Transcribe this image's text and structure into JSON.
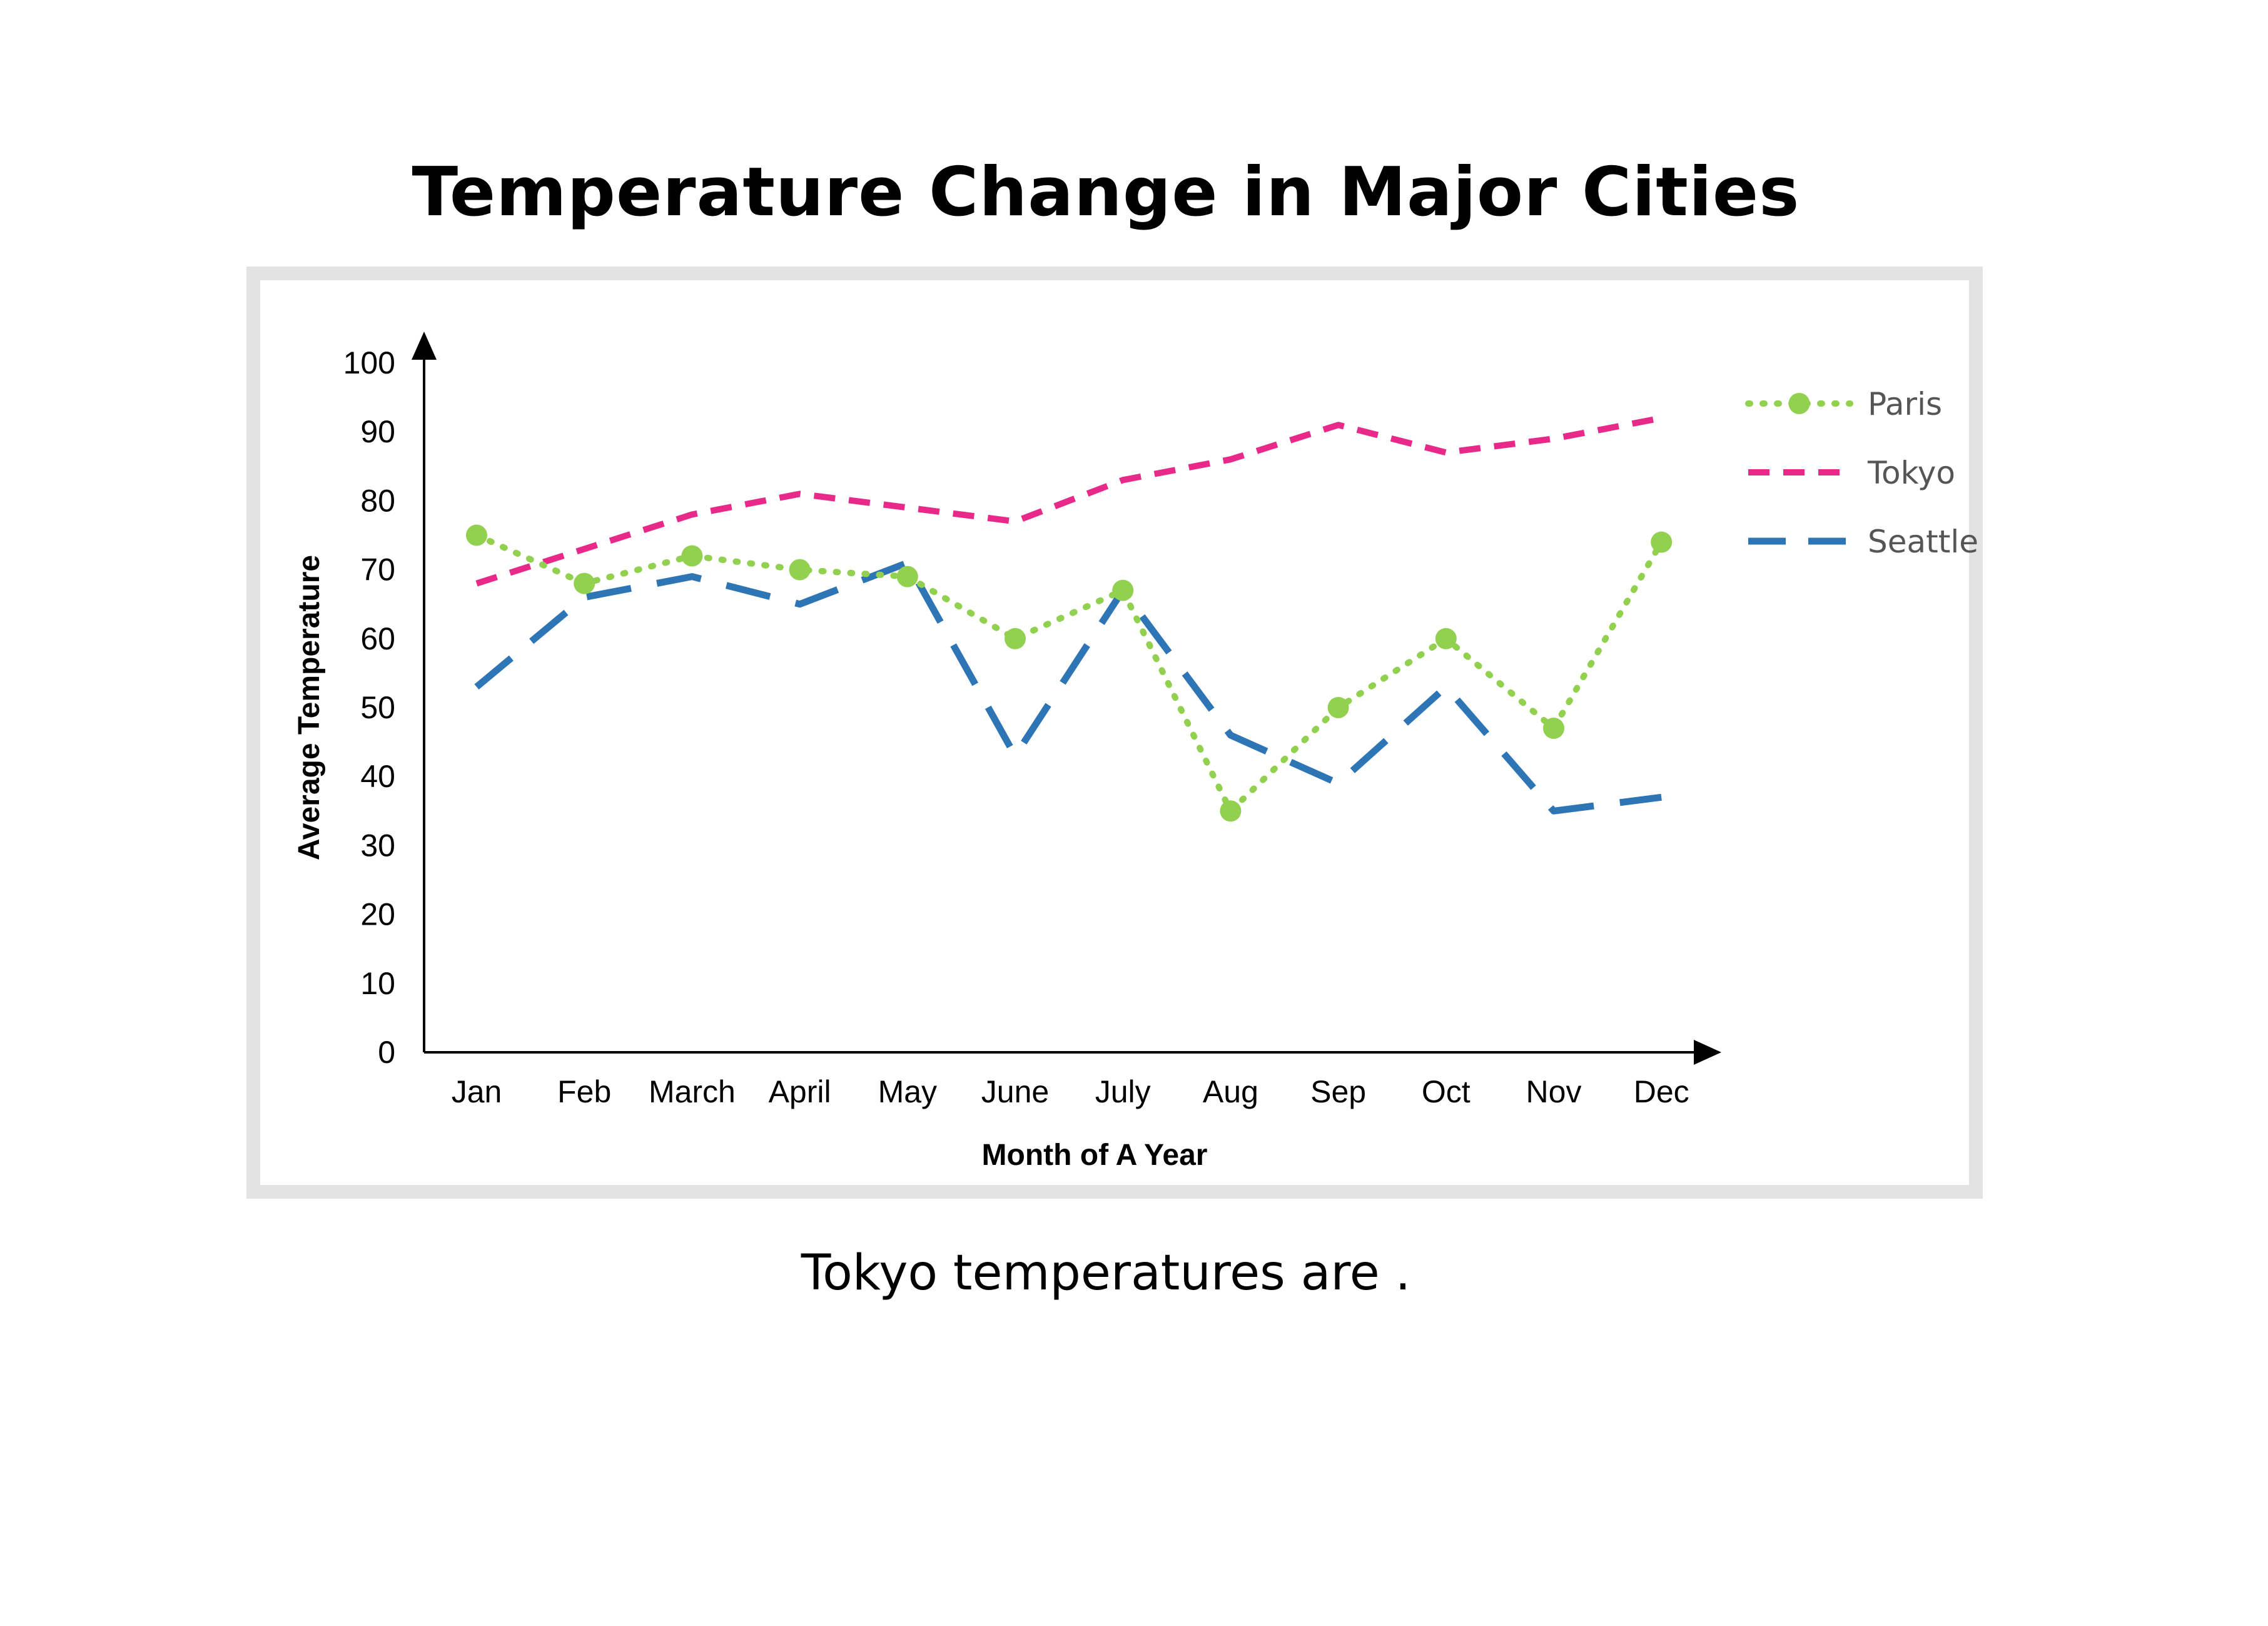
{
  "title": "Temperature Change in Major Cities",
  "caption": "Tokyo temperatures are .",
  "chart_data": {
    "type": "line",
    "xlabel": "Month of A Year",
    "ylabel": "Average Temperature",
    "ylim": [
      0,
      100
    ],
    "yticks": [
      0,
      10,
      20,
      30,
      40,
      50,
      60,
      70,
      80,
      90,
      100
    ],
    "grid": false,
    "legend_position": "right",
    "categories": [
      "Jan",
      "Feb",
      "March",
      "April",
      "May",
      "June",
      "July",
      "Aug",
      "Sep",
      "Oct",
      "Nov",
      "Dec"
    ],
    "series": [
      {
        "name": "Paris",
        "color": "#92d050",
        "style": "dotted-with-markers",
        "values": [
          75,
          68,
          72,
          70,
          69,
          60,
          67,
          35,
          50,
          60,
          47,
          74
        ]
      },
      {
        "name": "Tokyo",
        "color": "#e8298a",
        "style": "dashed",
        "values": [
          68,
          73,
          78,
          81,
          79,
          77,
          83,
          86,
          91,
          87,
          89,
          92
        ]
      },
      {
        "name": "Seattle",
        "color": "#2e75b6",
        "style": "long-dashed",
        "values": [
          53,
          66,
          69,
          65,
          71,
          43,
          67,
          46,
          39,
          53,
          35,
          37
        ]
      }
    ]
  }
}
